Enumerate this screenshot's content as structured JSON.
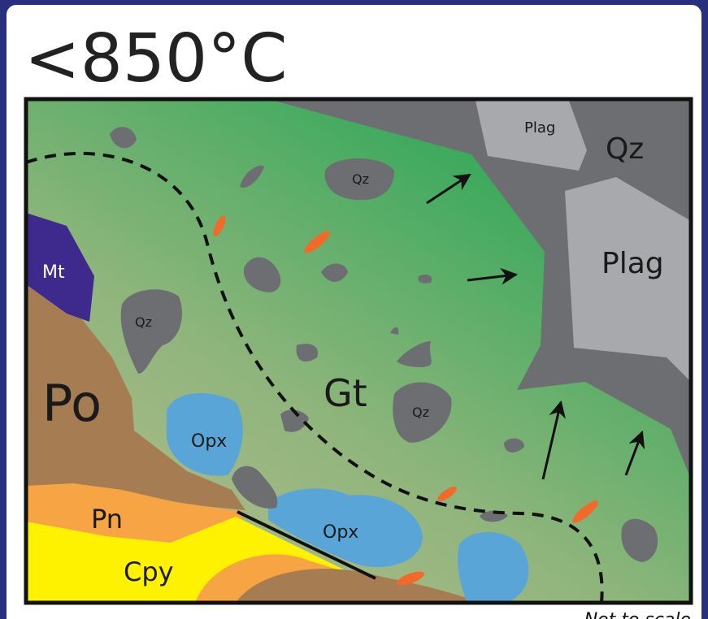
{
  "title": "<850°C",
  "labels": [
    "Plag",
    "Qz",
    "Plag",
    "Mt",
    "Qz",
    "Qz",
    "Qz",
    "Po",
    "Gt",
    "Opx",
    "Opx",
    "Pn",
    "Cpy"
  ],
  "footnote": "Not to scale"
}
